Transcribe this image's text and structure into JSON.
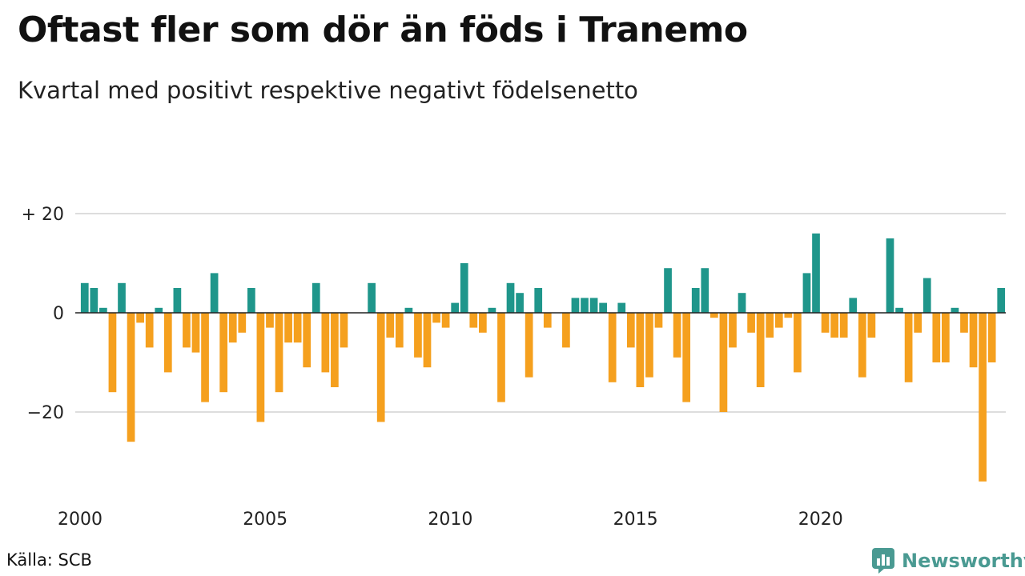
{
  "header": {
    "title": "Oftast fler som dör än föds i Tranemo",
    "subtitle": "Kvartal med positivt respektive negativt födelsenetto"
  },
  "footer": {
    "source": "Källa: SCB",
    "brand": "Newsworthy",
    "brand_icon": "bar-chart-speech-bubble-icon"
  },
  "colors": {
    "positive": "#1f968b",
    "negative": "#f5a01e",
    "brand": "#4a9a92",
    "grid": "#dddddd"
  },
  "chart_data": {
    "type": "bar",
    "x_unit": "quarter",
    "start_year": 2000,
    "x_tick_labels": [
      "2000",
      "2005",
      "2010",
      "2015",
      "2020"
    ],
    "y_tick_labels": [
      {
        "value": 20,
        "label": "+ 20"
      },
      {
        "value": 0,
        "label": "0"
      },
      {
        "value": -20,
        "label": "−20"
      }
    ],
    "ylim": [
      -36,
      20
    ],
    "grid": true,
    "values": [
      6,
      5,
      1,
      -16,
      6,
      -26,
      -2,
      -7,
      1,
      -12,
      5,
      -7,
      -8,
      -18,
      8,
      -16,
      -6,
      -4,
      5,
      -22,
      -3,
      -16,
      -6,
      -6,
      -11,
      6,
      -12,
      -15,
      -7,
      0,
      0,
      6,
      -22,
      -5,
      -7,
      1,
      -9,
      -11,
      -2,
      -3,
      2,
      10,
      -3,
      -4,
      1,
      -18,
      6,
      4,
      -13,
      5,
      -3,
      0,
      -7,
      3,
      3,
      3,
      2,
      -14,
      2,
      -7,
      -15,
      -13,
      -3,
      9,
      -9,
      -18,
      5,
      9,
      -1,
      -20,
      -7,
      4,
      -4,
      -15,
      -5,
      -3,
      -1,
      -12,
      8,
      16,
      -4,
      -5,
      -5,
      3,
      -13,
      -5,
      0,
      15,
      1,
      -14,
      -4,
      7,
      -10,
      -10,
      1,
      -4,
      -11,
      -34,
      -10,
      5
    ]
  }
}
